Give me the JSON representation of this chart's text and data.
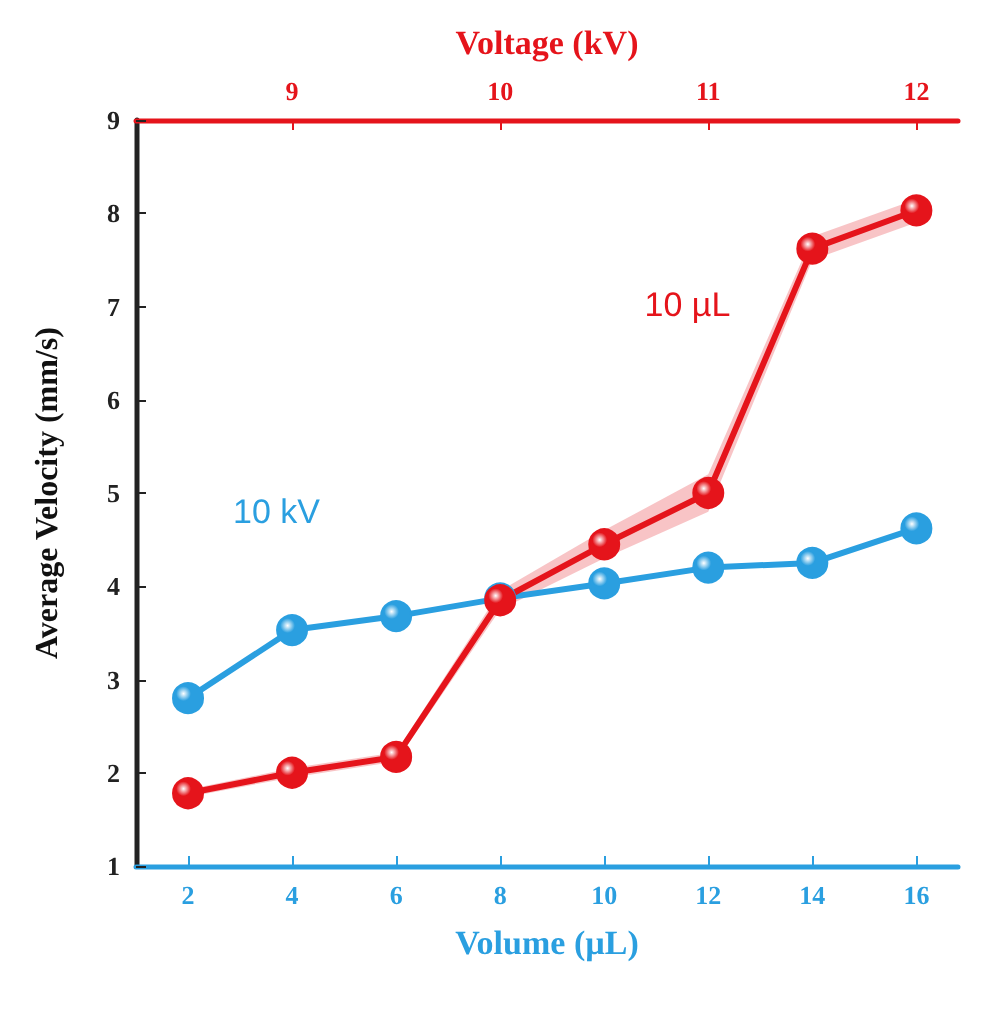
{
  "chart_data": {
    "type": "line",
    "xlabel": "Volume (µL)",
    "x2label": "Voltage (kV)",
    "ylabel": "Average Velocity (mm/s)",
    "xlim": [
      1,
      16.8
    ],
    "xticks": [
      2,
      4,
      6,
      8,
      10,
      12,
      14,
      16
    ],
    "x2lim": [
      8.25,
      12.2
    ],
    "x2ticks": [
      9,
      10,
      11,
      12
    ],
    "ylim": [
      1,
      9
    ],
    "yticks": [
      1,
      2,
      3,
      4,
      5,
      6,
      7,
      8,
      9
    ],
    "series": [
      {
        "name": "10 kV",
        "color": "#2a9fe0",
        "x": [
          2,
          4,
          6,
          8,
          10,
          12,
          14,
          16
        ],
        "values": [
          2.8,
          3.53,
          3.68,
          3.87,
          4.03,
          4.2,
          4.25,
          4.62
        ]
      },
      {
        "name": "10 µL",
        "color": "#e5141b",
        "axis": "x2",
        "x": [
          8.5,
          9,
          9.5,
          10,
          10.5,
          11,
          11.5,
          12
        ],
        "values": [
          1.78,
          2.0,
          2.17,
          3.85,
          4.45,
          5.0,
          7.62,
          8.03
        ],
        "lower": [
          1.74,
          1.95,
          2.12,
          3.75,
          4.3,
          4.8,
          7.5,
          7.9
        ],
        "upper": [
          1.82,
          2.05,
          2.22,
          3.95,
          4.6,
          5.2,
          7.75,
          8.15
        ]
      }
    ],
    "marker": "circle",
    "line_style": "solid",
    "grid": false,
    "legend": false
  }
}
